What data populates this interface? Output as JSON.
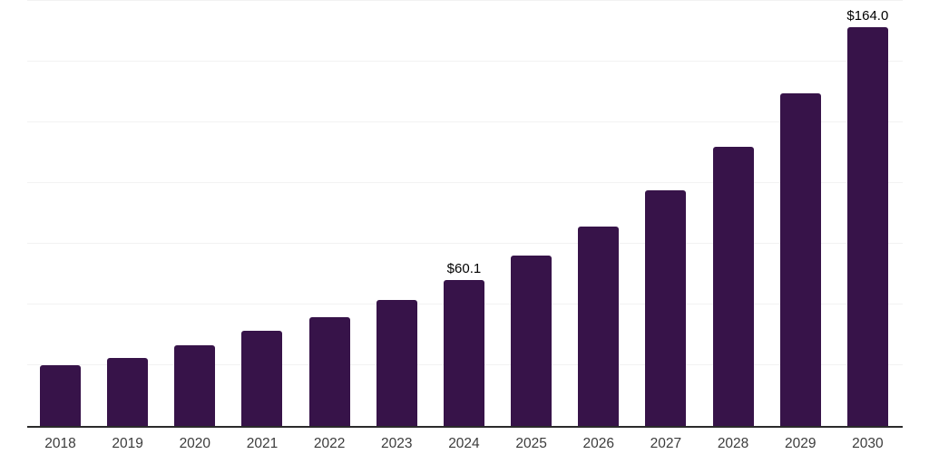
{
  "chart_data": {
    "type": "bar",
    "title": "",
    "categories": [
      "2018",
      "2019",
      "2020",
      "2021",
      "2022",
      "2023",
      "2024",
      "2025",
      "2026",
      "2027",
      "2028",
      "2029",
      "2030"
    ],
    "values": [
      25.0,
      28.1,
      33.2,
      39.0,
      44.8,
      51.9,
      60.1,
      70.2,
      82.2,
      97.1,
      115.0,
      137.1,
      164.0
    ],
    "data_labels": [
      "",
      "",
      "",
      "",
      "",
      "",
      "$60.1",
      "",
      "",
      "",
      "",
      "",
      "$164.0"
    ],
    "xlabel": "",
    "ylabel": "",
    "ylim": [
      0,
      175
    ],
    "gridline_step": 25,
    "grid": "horizontal-only",
    "legend": "none",
    "colors": {
      "bar": "#371349",
      "gridline": "#f2f2f2",
      "axis_line": "#2b2b2b",
      "data_label_text": "#000000",
      "tick_label_text": "#3c3c3c",
      "background": "#ffffff"
    }
  }
}
